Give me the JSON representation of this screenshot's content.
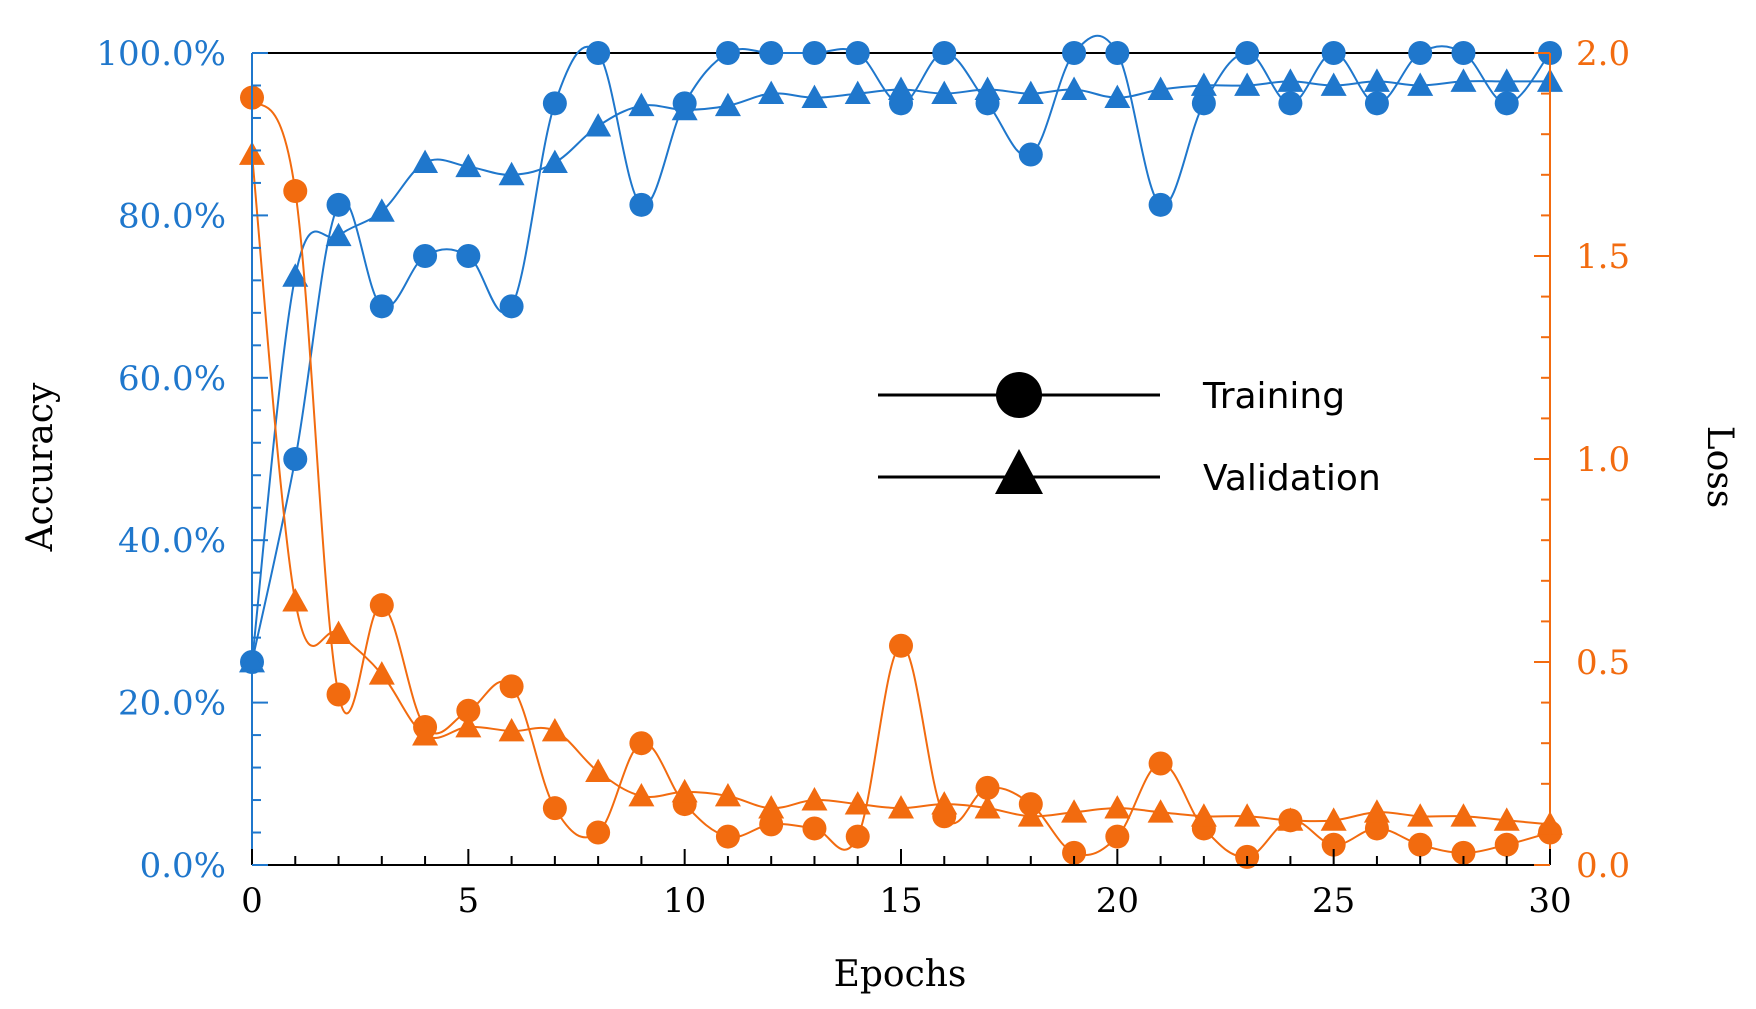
{
  "colors": {
    "accuracy": "#1f77cc",
    "loss": "#f26b0f",
    "frame": "#000000"
  },
  "chart_data": {
    "type": "line",
    "xlabel": "Epochs",
    "ylabel_left": "Accuracy",
    "ylabel_right": "Loss",
    "xlim": [
      0,
      30
    ],
    "ylim_left": [
      0,
      100
    ],
    "ylim_right": [
      0,
      2
    ],
    "x_ticks": [
      0,
      5,
      10,
      15,
      20,
      25,
      30
    ],
    "x_tick_labels": [
      "0",
      "5",
      "10",
      "15",
      "20",
      "25",
      "30"
    ],
    "y_left_ticks": [
      0,
      20,
      40,
      60,
      80,
      100
    ],
    "y_left_tick_labels": [
      "0.0%",
      "20.0%",
      "40.0%",
      "60.0%",
      "80.0%",
      "100.0%"
    ],
    "y_right_ticks": [
      0,
      0.5,
      1,
      1.5,
      2
    ],
    "y_right_tick_labels": [
      "0.0",
      "0.5",
      "1.0",
      "1.5",
      "2.0"
    ],
    "legend": [
      {
        "label": "Training",
        "marker": "circle"
      },
      {
        "label": "Validation",
        "marker": "triangle"
      }
    ],
    "legend_position": "center-right",
    "x": [
      0,
      1,
      2,
      3,
      4,
      5,
      6,
      7,
      8,
      9,
      10,
      11,
      12,
      13,
      14,
      15,
      16,
      17,
      18,
      19,
      20,
      21,
      22,
      23,
      24,
      25,
      26,
      27,
      28,
      29,
      30
    ],
    "series": [
      {
        "name": "Training Accuracy",
        "axis": "left",
        "marker": "circle",
        "color_key": "accuracy",
        "values": [
          25.0,
          50.0,
          81.3,
          68.8,
          75.0,
          75.0,
          68.8,
          93.8,
          100.0,
          81.3,
          93.8,
          100.0,
          100.0,
          100.0,
          100.0,
          93.8,
          100.0,
          93.8,
          87.5,
          100.0,
          100.0,
          81.3,
          93.8,
          100.0,
          93.8,
          100.0,
          93.8,
          100.0,
          100.0,
          93.8,
          100.0
        ]
      },
      {
        "name": "Validation Accuracy",
        "axis": "left",
        "marker": "triangle",
        "color_key": "accuracy",
        "values": [
          25.0,
          72.5,
          77.5,
          80.5,
          86.5,
          86.0,
          85.0,
          86.5,
          91.0,
          93.5,
          93.0,
          93.5,
          95.0,
          94.5,
          95.0,
          95.5,
          95.0,
          95.5,
          95.0,
          95.5,
          94.5,
          95.5,
          96.0,
          96.0,
          96.5,
          96.0,
          96.5,
          96.0,
          96.5,
          96.5,
          96.5
        ]
      },
      {
        "name": "Training Loss",
        "axis": "right",
        "marker": "circle",
        "color_key": "loss",
        "values": [
          1.89,
          1.66,
          0.42,
          0.64,
          0.34,
          0.38,
          0.44,
          0.14,
          0.08,
          0.3,
          0.15,
          0.07,
          0.1,
          0.09,
          0.07,
          0.54,
          0.12,
          0.19,
          0.15,
          0.03,
          0.07,
          0.25,
          0.09,
          0.02,
          0.11,
          0.05,
          0.09,
          0.05,
          0.03,
          0.05,
          0.08
        ]
      },
      {
        "name": "Validation Loss",
        "axis": "right",
        "marker": "triangle",
        "color_key": "loss",
        "values": [
          1.75,
          0.65,
          0.57,
          0.47,
          0.32,
          0.34,
          0.33,
          0.33,
          0.23,
          0.17,
          0.18,
          0.17,
          0.14,
          0.16,
          0.15,
          0.14,
          0.15,
          0.14,
          0.12,
          0.13,
          0.14,
          0.13,
          0.12,
          0.12,
          0.11,
          0.11,
          0.13,
          0.12,
          0.12,
          0.11,
          0.1
        ]
      }
    ]
  }
}
